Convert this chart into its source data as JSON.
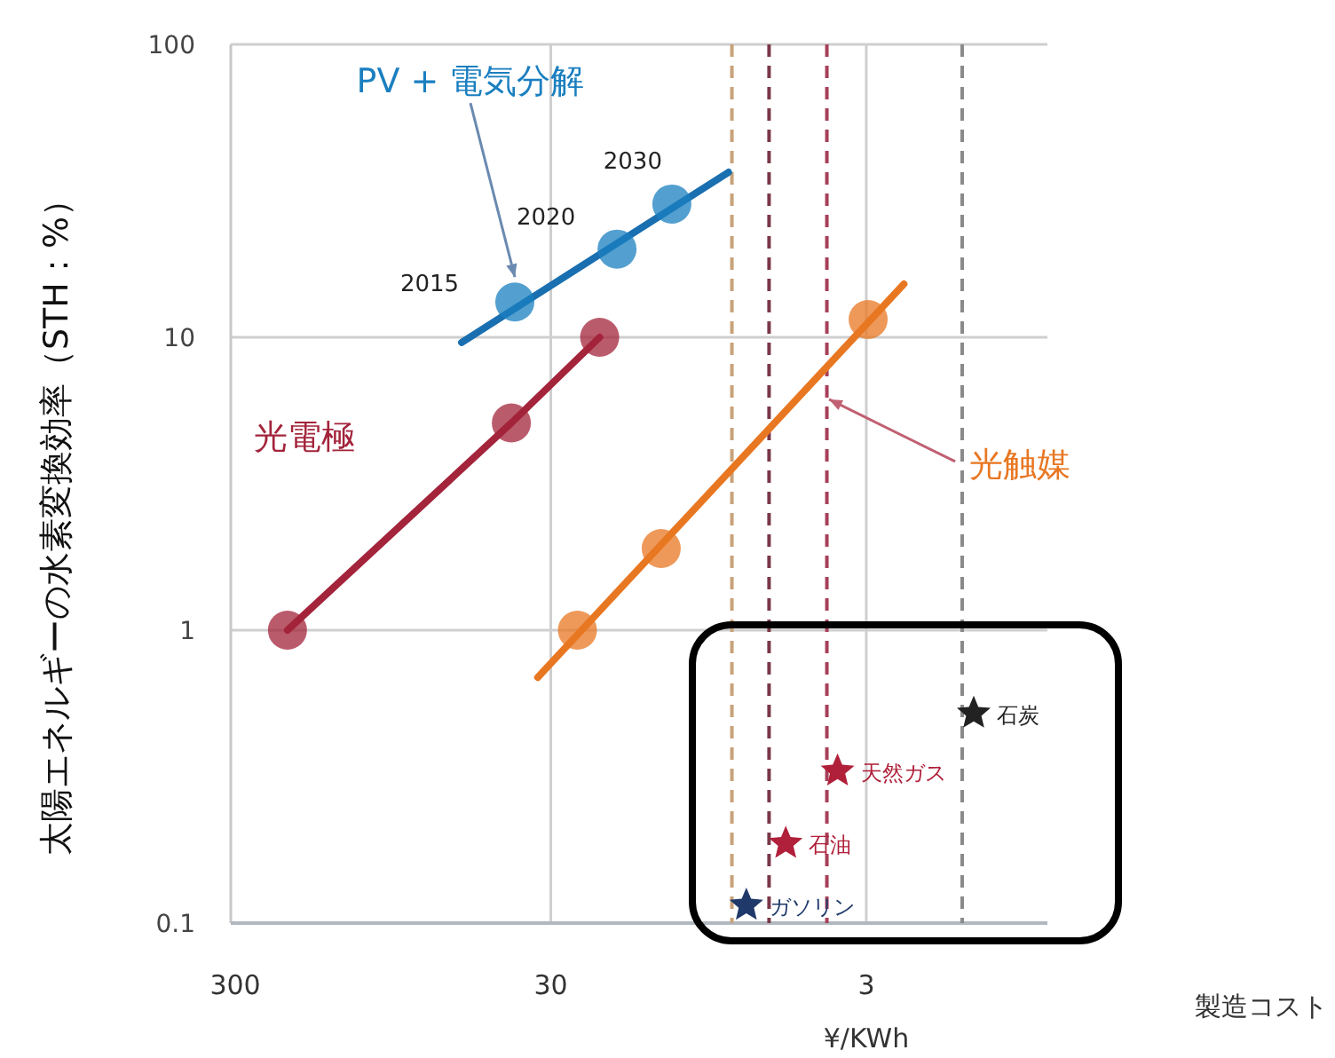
{
  "chart_data": {
    "type": "line",
    "xlabel": "¥/KWh",
    "ylabel": "太陽エネルギーの水素変換効率（STH：%）",
    "log": "xy",
    "xlim": [
      310,
      0.8
    ],
    "xticks": [
      300,
      30,
      3
    ],
    "ylim": [
      0.1,
      100
    ],
    "yticks": [
      0.1,
      1,
      10,
      100
    ],
    "grid": true,
    "legend": false,
    "series": [
      {
        "color": "#1a6fb0",
        "x": [
          57.5,
          8.2
        ],
        "values": [
          9.6,
          36.6
        ],
        "marker": "none"
      },
      {
        "type": "scatter",
        "name": "PV + 電気分解",
        "color": "#1a7fc0",
        "x": [
          39,
          18.5,
          12.4
        ],
        "values": [
          13.2,
          20,
          28.5
        ],
        "marker": "circle"
      },
      {
        "name": "光電極",
        "color": "#a3243b",
        "x": [
          205,
          40,
          21
        ],
        "values": [
          1,
          5.1,
          10
        ],
        "marker": "circle"
      },
      {
        "color": "#e87722",
        "x": [
          33,
          2.28
        ],
        "values": [
          0.69,
          15.2
        ],
        "marker": "none"
      },
      {
        "type": "scatter",
        "name": "光触媒",
        "color": "#e87722",
        "x": [
          24.7,
          13.4,
          2.96
        ],
        "values": [
          1.0,
          1.9,
          11.5
        ],
        "marker": "circle"
      },
      {
        "type": "scatter",
        "name": "ガソリン",
        "color": "#1f3a6a",
        "x": [
          7.2
        ],
        "values": [
          0.115
        ],
        "marker": "star"
      },
      {
        "type": "scatter",
        "name": "石油",
        "color": "#b0203a",
        "x": [
          5.4
        ],
        "values": [
          0.187
        ],
        "marker": "star"
      },
      {
        "type": "scatter",
        "name": "天然ガス",
        "color": "#b0203a",
        "x": [
          3.7
        ],
        "values": [
          0.33
        ],
        "marker": "star"
      },
      {
        "type": "scatter",
        "name": "石炭",
        "color": "#222222",
        "x": [
          1.37
        ],
        "values": [
          0.52
        ],
        "marker": "star"
      }
    ],
    "ref_lines": [
      {
        "axis": "x",
        "value": 8.0,
        "color": "#c9a27a",
        "line_style": "dashed"
      },
      {
        "axis": "x",
        "value": 6.1,
        "color": "#7a3848",
        "line_style": "dashed"
      },
      {
        "axis": "x",
        "value": 4.0,
        "color": "#a8405a",
        "line_style": "dashed"
      },
      {
        "axis": "x",
        "value": 1.49,
        "color": "#8a8a8a",
        "line_style": "dashed"
      }
    ],
    "annotations": [
      {
        "text": "2015",
        "x": 39,
        "y": 13.2
      },
      {
        "text": "2020",
        "x": 18.5,
        "y": 20
      },
      {
        "text": "2030",
        "x": 12.4,
        "y": 28.5
      },
      "製造コスト"
    ]
  }
}
